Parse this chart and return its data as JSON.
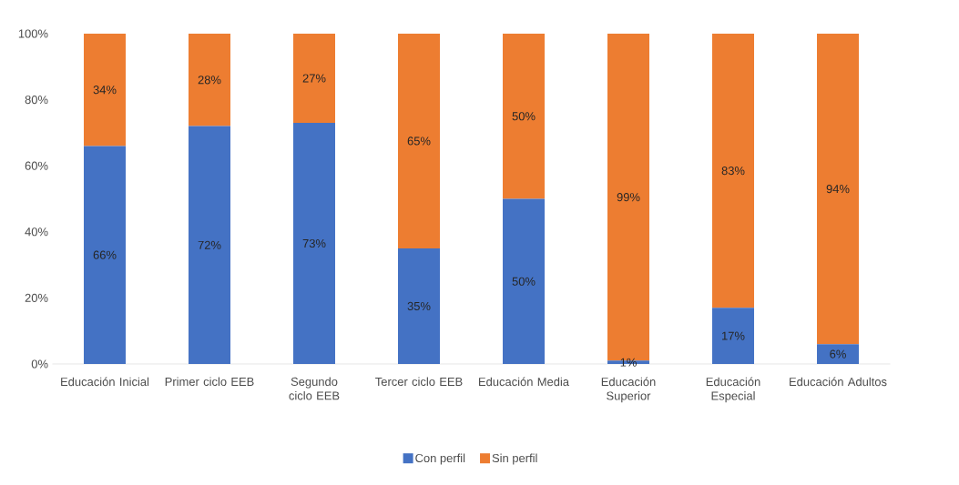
{
  "chart_data": {
    "type": "bar",
    "stacked": true,
    "categories": [
      "Educación Inicial",
      "Primer ciclo EEB",
      "Segundo ciclo EEB",
      "Tercer ciclo EEB",
      "Educación Media",
      "Educación Superior",
      "Educación Especial",
      "Educación Adultos"
    ],
    "series": [
      {
        "name": "Con perfil",
        "color": "#4472c4",
        "values": [
          66,
          72,
          73,
          35,
          50,
          1,
          17,
          6
        ],
        "value_labels": [
          "66%",
          "72%",
          "73%",
          "35%",
          "50%",
          "1%",
          "17%",
          "6%"
        ]
      },
      {
        "name": "Sin perfil",
        "color": "#ed7d31",
        "values": [
          34,
          28,
          27,
          65,
          50,
          99,
          83,
          94
        ],
        "value_labels": [
          "34%",
          "28%",
          "27%",
          "65%",
          "50%",
          "99%",
          "83%",
          "94%"
        ]
      }
    ],
    "ylim": [
      0,
      100
    ],
    "yticks": [
      {
        "value": 0,
        "label": "0%"
      },
      {
        "value": 20,
        "label": "20%"
      },
      {
        "value": 40,
        "label": "40%"
      },
      {
        "value": 60,
        "label": "60%"
      },
      {
        "value": 80,
        "label": "80%"
      },
      {
        "value": 100,
        "label": "100%"
      }
    ],
    "legend": "bottom"
  }
}
